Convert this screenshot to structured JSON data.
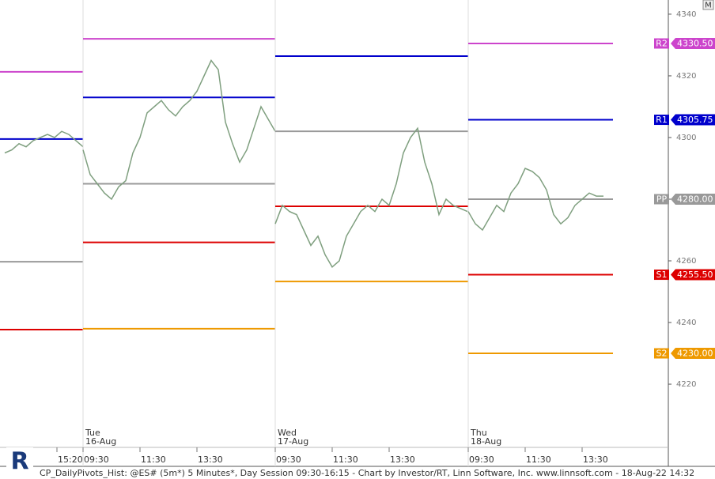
{
  "chart_data": {
    "type": "pivot-price",
    "footer": "CP_DailyPivots_Hist: @ES# (5m*) 5 Minutes*, Day Session 09:30-16:15 - Chart by Investor/RT, Linn Software, Inc. www.linnsoft.com - 18-Aug-22 14:32",
    "button": "M",
    "price_color": "#7f9f7f",
    "ylim": [
      4199.5,
      4344.6
    ],
    "yticks": [
      4340,
      4320,
      4300,
      4280,
      4260,
      4240,
      4220
    ],
    "levels": [
      {
        "name": "R2",
        "color": "#cc44cc"
      },
      {
        "name": "R1",
        "color": "#0000cc"
      },
      {
        "name": "PP",
        "color": "#999999"
      },
      {
        "name": "S1",
        "color": "#dd0000"
      },
      {
        "name": "S2",
        "color": "#ee9900"
      }
    ],
    "sessions": [
      {
        "time_ticks": [
          "15:20"
        ],
        "pivots": [
          4321.3,
          4299.5,
          4259.7,
          4237.7,
          null
        ],
        "prices": [
          4295,
          4296,
          4298,
          4297,
          4299,
          4300,
          4301,
          4300,
          4302,
          4301,
          4299,
          4297
        ]
      },
      {
        "day": "Tue",
        "date": "16-Aug",
        "time_ticks": [
          "09:30",
          "11:30",
          "13:30"
        ],
        "pivots": [
          4332,
          4313,
          4285,
          4266,
          4238
        ],
        "prices": [
          4296,
          4288,
          4285,
          4282,
          4280,
          4284,
          4286,
          4295,
          4300,
          4308,
          4310,
          4312,
          4309,
          4307,
          4310,
          4312,
          4315,
          4320,
          4325,
          4322,
          4305,
          4298,
          4292,
          4296,
          4303,
          4310,
          4306,
          4302
        ]
      },
      {
        "day": "Wed",
        "date": "17-Aug",
        "time_ticks": [
          "09:30",
          "11:30",
          "13:30"
        ],
        "pivots": [
          null,
          4326.4,
          4302,
          4277.7,
          4253.3
        ],
        "prices": [
          4272,
          4278,
          4276,
          4275,
          4270,
          4265,
          4268,
          4262,
          4258,
          4260,
          4268,
          4272,
          4276,
          4278,
          4276,
          4280,
          4278,
          4285,
          4295,
          4300,
          4303,
          4292,
          4285,
          4275,
          4280,
          4278,
          4277,
          4276
        ]
      },
      {
        "day": "Thu",
        "date": "18-Aug",
        "time_ticks": [
          "09:30",
          "11:30",
          "13:30"
        ],
        "pivots": [
          4330.5,
          4305.75,
          4280,
          4255.5,
          4230
        ],
        "value_labels": [
          "4330.50",
          "4305.75",
          "4280.00",
          "4255.50",
          "4230.00"
        ],
        "prices": [
          4276,
          4272,
          4270,
          4274,
          4278,
          4276,
          4282,
          4285,
          4290,
          4289,
          4287,
          4283,
          4275,
          4272,
          4274,
          4278,
          4280,
          4282,
          4281,
          4281
        ]
      }
    ]
  }
}
